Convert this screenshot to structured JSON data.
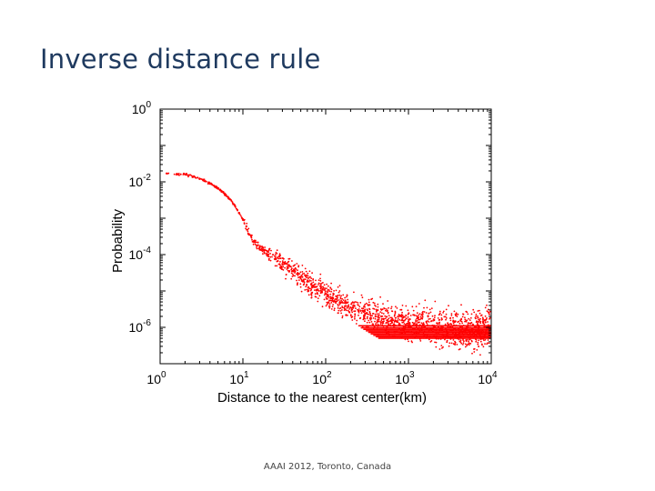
{
  "slide": {
    "title": "Inverse distance rule",
    "footer": "AAAI 2012, Toronto, Canada"
  },
  "chart_data": {
    "type": "scatter",
    "xlabel": "Distance to the nearest center(km)",
    "ylabel": "Probability",
    "x_scale": "log",
    "y_scale": "log",
    "xlim": [
      1,
      10000
    ],
    "ylim": [
      1e-07,
      1
    ],
    "x_ticks": [
      {
        "base": "10",
        "exp": "0",
        "value": 1
      },
      {
        "base": "10",
        "exp": "1",
        "value": 10
      },
      {
        "base": "10",
        "exp": "2",
        "value": 100
      },
      {
        "base": "10",
        "exp": "3",
        "value": 1000
      },
      {
        "base": "10",
        "exp": "4",
        "value": 10000
      }
    ],
    "y_ticks": [
      {
        "base": "10",
        "exp": "0",
        "value": 1
      },
      {
        "base": "10",
        "exp": "-2",
        "value": 0.01
      },
      {
        "base": "10",
        "exp": "-4",
        "value": 0.0001
      },
      {
        "base": "10",
        "exp": "-6",
        "value": 1e-06
      }
    ],
    "grid": false,
    "marker_color": "#ff0000",
    "series": [
      {
        "x": [
          1.2,
          1.6,
          2.0,
          2.5,
          3.0,
          3.5,
          4.0,
          4.5,
          5.0,
          5.5,
          6.0,
          7.0,
          8.0,
          9.0,
          10,
          11,
          12,
          14,
          16,
          18,
          20,
          25,
          30,
          35,
          40,
          50,
          60,
          70,
          80,
          90,
          100,
          120,
          150,
          200,
          250,
          300,
          400,
          500,
          700,
          1000,
          1500,
          2000,
          3000,
          5000,
          7000,
          10000
        ],
        "y": [
          0.017,
          0.0165,
          0.016,
          0.014,
          0.012,
          0.0105,
          0.009,
          0.0078,
          0.0066,
          0.0056,
          0.0047,
          0.0033,
          0.0022,
          0.0014,
          0.0009,
          0.0006,
          0.00035,
          0.00022,
          0.00016,
          0.00013,
          0.0001,
          7.5e-05,
          5.5e-05,
          4.3e-05,
          3.5e-05,
          2.4e-05,
          1.8e-05,
          1.4e-05,
          1.1e-05,
          9.5e-06,
          8.5e-06,
          6.5e-06,
          4.8e-06,
          3.5e-06,
          2.8e-06,
          2.4e-06,
          2e-06,
          1.7e-06,
          1.5e-06,
          1.3e-06,
          1.2e-06,
          1.1e-06,
          1e-06,
          9e-07,
          9e-07,
          9e-07
        ]
      }
    ]
  }
}
